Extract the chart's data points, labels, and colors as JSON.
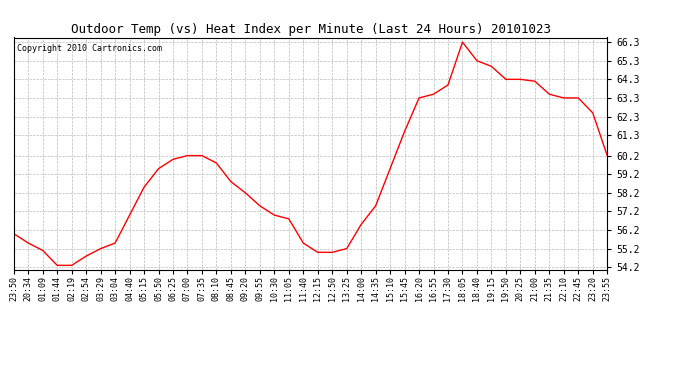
{
  "title": "Outdoor Temp (vs) Heat Index per Minute (Last 24 Hours) 20101023",
  "copyright": "Copyright 2010 Cartronics.com",
  "line_color": "#ff0000",
  "bg_color": "#ffffff",
  "grid_color": "#bbbbbb",
  "yticks": [
    54.2,
    55.2,
    56.2,
    57.2,
    58.2,
    59.2,
    60.2,
    61.3,
    62.3,
    63.3,
    64.3,
    65.3,
    66.3
  ],
  "ymin": 54.05,
  "ymax": 66.55,
  "xtick_labels": [
    "23:50",
    "20:34",
    "01:09",
    "01:44",
    "02:19",
    "02:54",
    "03:29",
    "03:04",
    "04:40",
    "05:15",
    "05:50",
    "06:25",
    "07:00",
    "07:35",
    "08:10",
    "08:45",
    "09:20",
    "09:55",
    "10:30",
    "11:05",
    "11:40",
    "12:15",
    "12:50",
    "13:25",
    "14:00",
    "14:35",
    "15:10",
    "15:45",
    "16:20",
    "16:55",
    "17:30",
    "18:05",
    "18:40",
    "19:15",
    "19:50",
    "20:25",
    "21:00",
    "21:35",
    "22:10",
    "22:45",
    "23:20",
    "23:55"
  ],
  "xtick_labels_display": [
    "23:50",
    "20:34",
    "01:09",
    "01:44",
    "02:19",
    "02:54",
    "03:29",
    "03:04",
    "04:40",
    "05:15",
    "05:50",
    "06:25",
    "07:00",
    "07:35",
    "08:10",
    "08:45",
    "09:20",
    "09:55",
    "10:30",
    "11:05",
    "11:40",
    "12:15",
    "12:50",
    "13:25",
    "14:00",
    "14:35",
    "15:10",
    "15:45",
    "16:20",
    "16:55",
    "17:30",
    "18:05",
    "18:40",
    "19:15",
    "19:50",
    "20:25",
    "21:00",
    "21:35",
    "22:10",
    "22:45",
    "23:20",
    "23:55"
  ],
  "curve_y": [
    56.0,
    55.5,
    55.1,
    54.3,
    54.3,
    54.8,
    55.2,
    55.5,
    57.0,
    58.5,
    59.5,
    60.0,
    60.2,
    60.2,
    59.8,
    58.8,
    58.2,
    57.5,
    57.0,
    56.8,
    55.5,
    55.0,
    55.0,
    55.2,
    56.5,
    57.5,
    59.5,
    61.5,
    63.3,
    63.5,
    64.0,
    66.3,
    65.3,
    65.0,
    64.3,
    64.3,
    64.2,
    63.5,
    63.3,
    63.3,
    62.5,
    60.2
  ]
}
